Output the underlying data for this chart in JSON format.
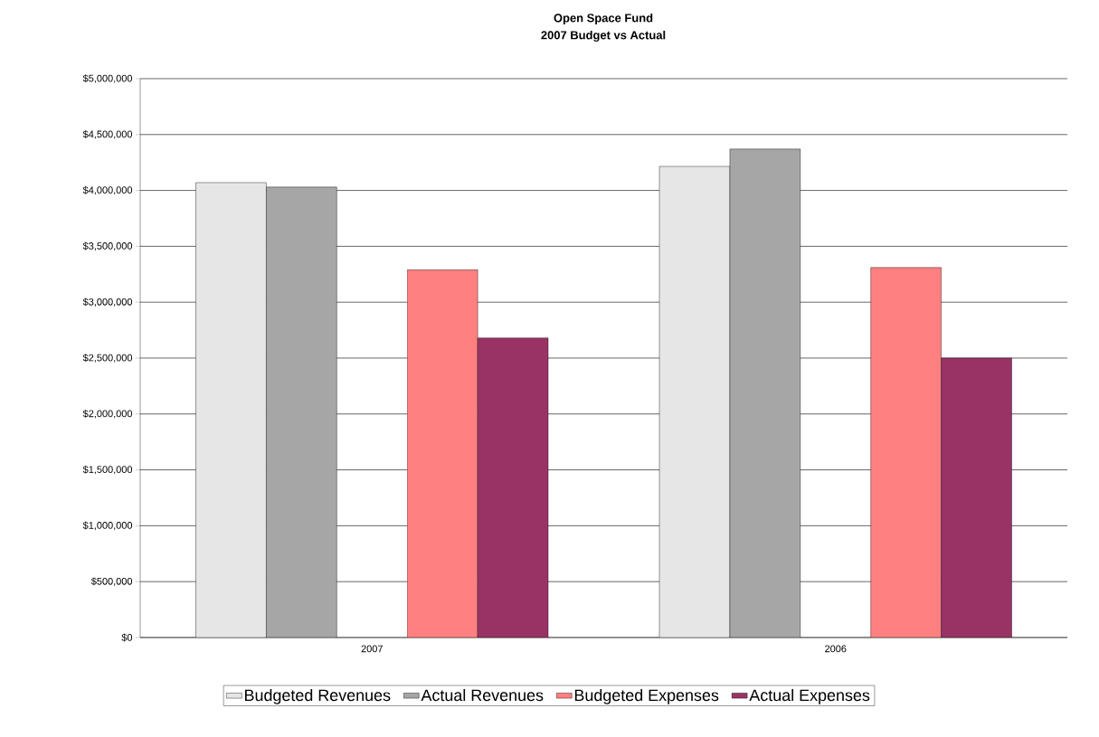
{
  "chart_data": {
    "type": "bar",
    "title": "Open Space Fund",
    "subtitle": "2007 Budget vs Actual",
    "categories": [
      "2007",
      "2006"
    ],
    "series": [
      {
        "name": "Budgeted Revenues",
        "color": "#e6e6e6",
        "values": [
          4070000,
          4215000
        ]
      },
      {
        "name": "Actual Revenues",
        "color": "#a6a6a6",
        "values": [
          4030000,
          4370000
        ]
      },
      {
        "name": "Budgeted Expenses",
        "color": "#ff8080",
        "values": [
          3290000,
          3310000
        ]
      },
      {
        "name": "Actual Expenses",
        "color": "#993366",
        "values": [
          2680000,
          2500000
        ]
      }
    ],
    "ylim": [
      0,
      5000000
    ],
    "yticks": [
      {
        "value": 0,
        "label": "$0"
      },
      {
        "value": 500000,
        "label": "$500,000"
      },
      {
        "value": 1000000,
        "label": "$1,000,000"
      },
      {
        "value": 1500000,
        "label": "$1,500,000"
      },
      {
        "value": 2000000,
        "label": "$2,000,000"
      },
      {
        "value": 2500000,
        "label": "$2,500,000"
      },
      {
        "value": 3000000,
        "label": "$3,000,000"
      },
      {
        "value": 3500000,
        "label": "$3,500,000"
      },
      {
        "value": 4000000,
        "label": "$4,000,000"
      },
      {
        "value": 4500000,
        "label": "$4,500,000"
      },
      {
        "value": 5000000,
        "label": "$5,000,000"
      }
    ],
    "grid": "y",
    "legend": "bottom"
  }
}
